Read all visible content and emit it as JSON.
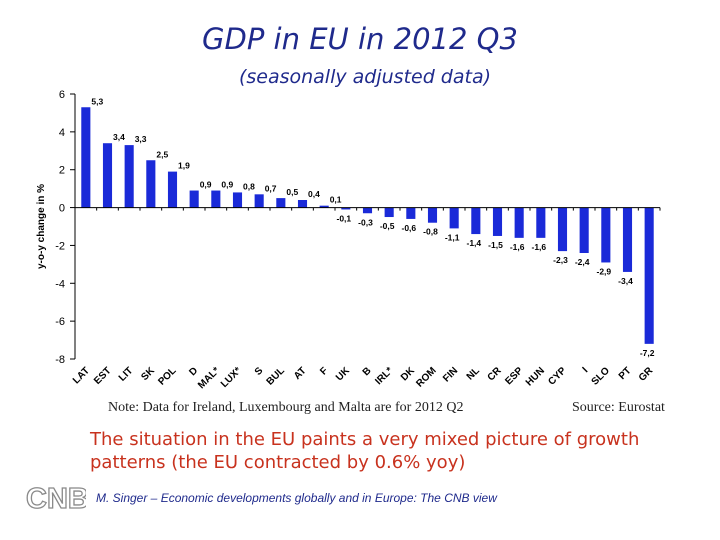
{
  "slide": {
    "note": "Note: Data for Ireland, Luxembourg and Malta are for 2012 Q2",
    "source": "Source: Eurostat",
    "caption": "The situation in the EU paints a very mixed picture of growth patterns (the EU contracted by 0.6% yoy)",
    "footer": "M. Singer – Economic developments globally and in Europe: The CNB view",
    "logo_text": "CNB"
  },
  "chart_data": {
    "type": "bar",
    "title": "GDP in EU in 2012 Q3",
    "subtitle": "(seasonally adjusted data)",
    "ylabel": "y-o-y change in %",
    "xlabel": "",
    "ylim": [
      -8,
      6
    ],
    "yticks": [
      6,
      4,
      2,
      0,
      -2,
      -4,
      -6,
      -8
    ],
    "bar_color": "#1a2ad8",
    "grid": false,
    "categories": [
      "LAT",
      "EST",
      "LIT",
      "SK",
      "POL",
      "D",
      "MAL*",
      "LUX*",
      "S",
      "BUL",
      "AT",
      "F",
      "UK",
      "B",
      "IRL*",
      "DK",
      "ROM",
      "FIN",
      "NL",
      "CR",
      "ESP",
      "HUN",
      "CYP",
      "I",
      "SLO",
      "PT",
      "GR"
    ],
    "values": [
      5.3,
      3.4,
      3.3,
      2.5,
      1.9,
      0.9,
      0.9,
      0.8,
      0.7,
      0.5,
      0.4,
      0.1,
      -0.1,
      -0.3,
      -0.5,
      -0.6,
      -0.8,
      -1.1,
      -1.4,
      -1.5,
      -1.6,
      -1.6,
      -2.3,
      -2.4,
      -2.9,
      -3.4,
      -7.2
    ],
    "value_labels": [
      "5,3",
      "3,4",
      "3,3",
      "2,5",
      "1,9",
      "0,9",
      "0,9",
      "0,8",
      "0,7",
      "0,5",
      "0,4",
      "0,1",
      "-0,1",
      "-0,3",
      "-0,5",
      "-0,6",
      "-0,8",
      "-1,1",
      "-1,4",
      "-1,5",
      "-1,6",
      "-1,6",
      "-2,3",
      "-2,4",
      "-2,9",
      "-3,4",
      "-7,2"
    ]
  }
}
